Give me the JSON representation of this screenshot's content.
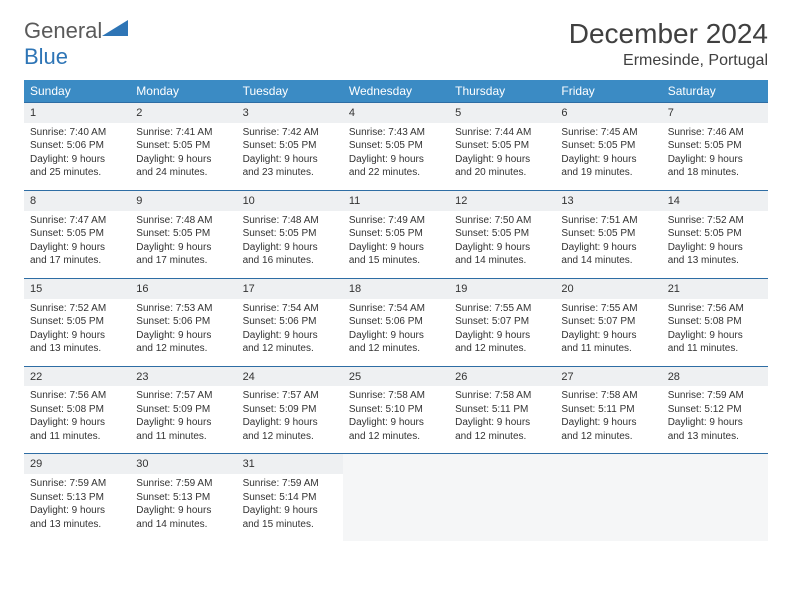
{
  "brand": {
    "part1": "General",
    "part2": "Blue"
  },
  "header": {
    "month": "December 2024",
    "location": "Ermesinde, Portugal"
  },
  "weekdays": [
    "Sunday",
    "Monday",
    "Tuesday",
    "Wednesday",
    "Thursday",
    "Friday",
    "Saturday"
  ],
  "colors": {
    "header_bg": "#3b8bc4",
    "header_text": "#ffffff",
    "daynum_bg": "#eef0f2",
    "border": "#2e6da4",
    "brand_gray": "#5a5a5a",
    "brand_blue": "#2e75b6",
    "text": "#333333"
  },
  "weeks": [
    [
      {
        "n": "1",
        "sr": "Sunrise: 7:40 AM",
        "ss": "Sunset: 5:06 PM",
        "dl": "Daylight: 9 hours and 25 minutes."
      },
      {
        "n": "2",
        "sr": "Sunrise: 7:41 AM",
        "ss": "Sunset: 5:05 PM",
        "dl": "Daylight: 9 hours and 24 minutes."
      },
      {
        "n": "3",
        "sr": "Sunrise: 7:42 AM",
        "ss": "Sunset: 5:05 PM",
        "dl": "Daylight: 9 hours and 23 minutes."
      },
      {
        "n": "4",
        "sr": "Sunrise: 7:43 AM",
        "ss": "Sunset: 5:05 PM",
        "dl": "Daylight: 9 hours and 22 minutes."
      },
      {
        "n": "5",
        "sr": "Sunrise: 7:44 AM",
        "ss": "Sunset: 5:05 PM",
        "dl": "Daylight: 9 hours and 20 minutes."
      },
      {
        "n": "6",
        "sr": "Sunrise: 7:45 AM",
        "ss": "Sunset: 5:05 PM",
        "dl": "Daylight: 9 hours and 19 minutes."
      },
      {
        "n": "7",
        "sr": "Sunrise: 7:46 AM",
        "ss": "Sunset: 5:05 PM",
        "dl": "Daylight: 9 hours and 18 minutes."
      }
    ],
    [
      {
        "n": "8",
        "sr": "Sunrise: 7:47 AM",
        "ss": "Sunset: 5:05 PM",
        "dl": "Daylight: 9 hours and 17 minutes."
      },
      {
        "n": "9",
        "sr": "Sunrise: 7:48 AM",
        "ss": "Sunset: 5:05 PM",
        "dl": "Daylight: 9 hours and 17 minutes."
      },
      {
        "n": "10",
        "sr": "Sunrise: 7:48 AM",
        "ss": "Sunset: 5:05 PM",
        "dl": "Daylight: 9 hours and 16 minutes."
      },
      {
        "n": "11",
        "sr": "Sunrise: 7:49 AM",
        "ss": "Sunset: 5:05 PM",
        "dl": "Daylight: 9 hours and 15 minutes."
      },
      {
        "n": "12",
        "sr": "Sunrise: 7:50 AM",
        "ss": "Sunset: 5:05 PM",
        "dl": "Daylight: 9 hours and 14 minutes."
      },
      {
        "n": "13",
        "sr": "Sunrise: 7:51 AM",
        "ss": "Sunset: 5:05 PM",
        "dl": "Daylight: 9 hours and 14 minutes."
      },
      {
        "n": "14",
        "sr": "Sunrise: 7:52 AM",
        "ss": "Sunset: 5:05 PM",
        "dl": "Daylight: 9 hours and 13 minutes."
      }
    ],
    [
      {
        "n": "15",
        "sr": "Sunrise: 7:52 AM",
        "ss": "Sunset: 5:05 PM",
        "dl": "Daylight: 9 hours and 13 minutes."
      },
      {
        "n": "16",
        "sr": "Sunrise: 7:53 AM",
        "ss": "Sunset: 5:06 PM",
        "dl": "Daylight: 9 hours and 12 minutes."
      },
      {
        "n": "17",
        "sr": "Sunrise: 7:54 AM",
        "ss": "Sunset: 5:06 PM",
        "dl": "Daylight: 9 hours and 12 minutes."
      },
      {
        "n": "18",
        "sr": "Sunrise: 7:54 AM",
        "ss": "Sunset: 5:06 PM",
        "dl": "Daylight: 9 hours and 12 minutes."
      },
      {
        "n": "19",
        "sr": "Sunrise: 7:55 AM",
        "ss": "Sunset: 5:07 PM",
        "dl": "Daylight: 9 hours and 12 minutes."
      },
      {
        "n": "20",
        "sr": "Sunrise: 7:55 AM",
        "ss": "Sunset: 5:07 PM",
        "dl": "Daylight: 9 hours and 11 minutes."
      },
      {
        "n": "21",
        "sr": "Sunrise: 7:56 AM",
        "ss": "Sunset: 5:08 PM",
        "dl": "Daylight: 9 hours and 11 minutes."
      }
    ],
    [
      {
        "n": "22",
        "sr": "Sunrise: 7:56 AM",
        "ss": "Sunset: 5:08 PM",
        "dl": "Daylight: 9 hours and 11 minutes."
      },
      {
        "n": "23",
        "sr": "Sunrise: 7:57 AM",
        "ss": "Sunset: 5:09 PM",
        "dl": "Daylight: 9 hours and 11 minutes."
      },
      {
        "n": "24",
        "sr": "Sunrise: 7:57 AM",
        "ss": "Sunset: 5:09 PM",
        "dl": "Daylight: 9 hours and 12 minutes."
      },
      {
        "n": "25",
        "sr": "Sunrise: 7:58 AM",
        "ss": "Sunset: 5:10 PM",
        "dl": "Daylight: 9 hours and 12 minutes."
      },
      {
        "n": "26",
        "sr": "Sunrise: 7:58 AM",
        "ss": "Sunset: 5:11 PM",
        "dl": "Daylight: 9 hours and 12 minutes."
      },
      {
        "n": "27",
        "sr": "Sunrise: 7:58 AM",
        "ss": "Sunset: 5:11 PM",
        "dl": "Daylight: 9 hours and 12 minutes."
      },
      {
        "n": "28",
        "sr": "Sunrise: 7:59 AM",
        "ss": "Sunset: 5:12 PM",
        "dl": "Daylight: 9 hours and 13 minutes."
      }
    ],
    [
      {
        "n": "29",
        "sr": "Sunrise: 7:59 AM",
        "ss": "Sunset: 5:13 PM",
        "dl": "Daylight: 9 hours and 13 minutes."
      },
      {
        "n": "30",
        "sr": "Sunrise: 7:59 AM",
        "ss": "Sunset: 5:13 PM",
        "dl": "Daylight: 9 hours and 14 minutes."
      },
      {
        "n": "31",
        "sr": "Sunrise: 7:59 AM",
        "ss": "Sunset: 5:14 PM",
        "dl": "Daylight: 9 hours and 15 minutes."
      },
      null,
      null,
      null,
      null
    ]
  ]
}
